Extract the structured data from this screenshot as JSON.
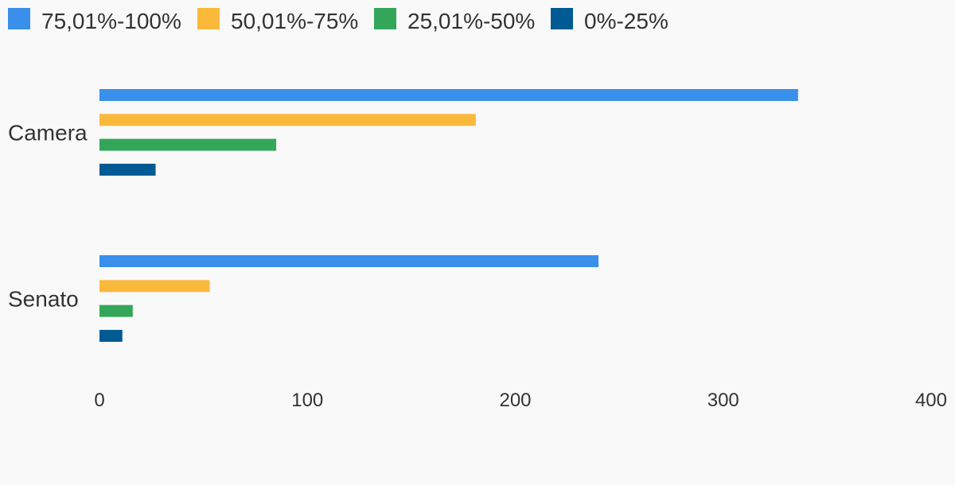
{
  "chart_data": {
    "type": "bar",
    "orientation": "horizontal",
    "title": "",
    "xlabel": "",
    "ylabel": "",
    "categories": [
      "Camera",
      "Senato"
    ],
    "series": [
      {
        "name": "75,01%-100%",
        "color": "#3a8fea",
        "values": [
          336,
          240
        ]
      },
      {
        "name": "50,01%-75%",
        "color": "#fbb93b",
        "values": [
          181,
          53
        ]
      },
      {
        "name": "25,01%-50%",
        "color": "#34a65a",
        "values": [
          85,
          16
        ]
      },
      {
        "name": "0%-25%",
        "color": "#005a94",
        "values": [
          27,
          11
        ]
      }
    ],
    "xlim": [
      0,
      400
    ],
    "xticks": [
      0,
      100,
      200,
      300,
      400
    ],
    "xtick_labels": [
      "0",
      "100",
      "200",
      "300",
      "400"
    ],
    "grid": false,
    "legend_position": "top-left"
  }
}
